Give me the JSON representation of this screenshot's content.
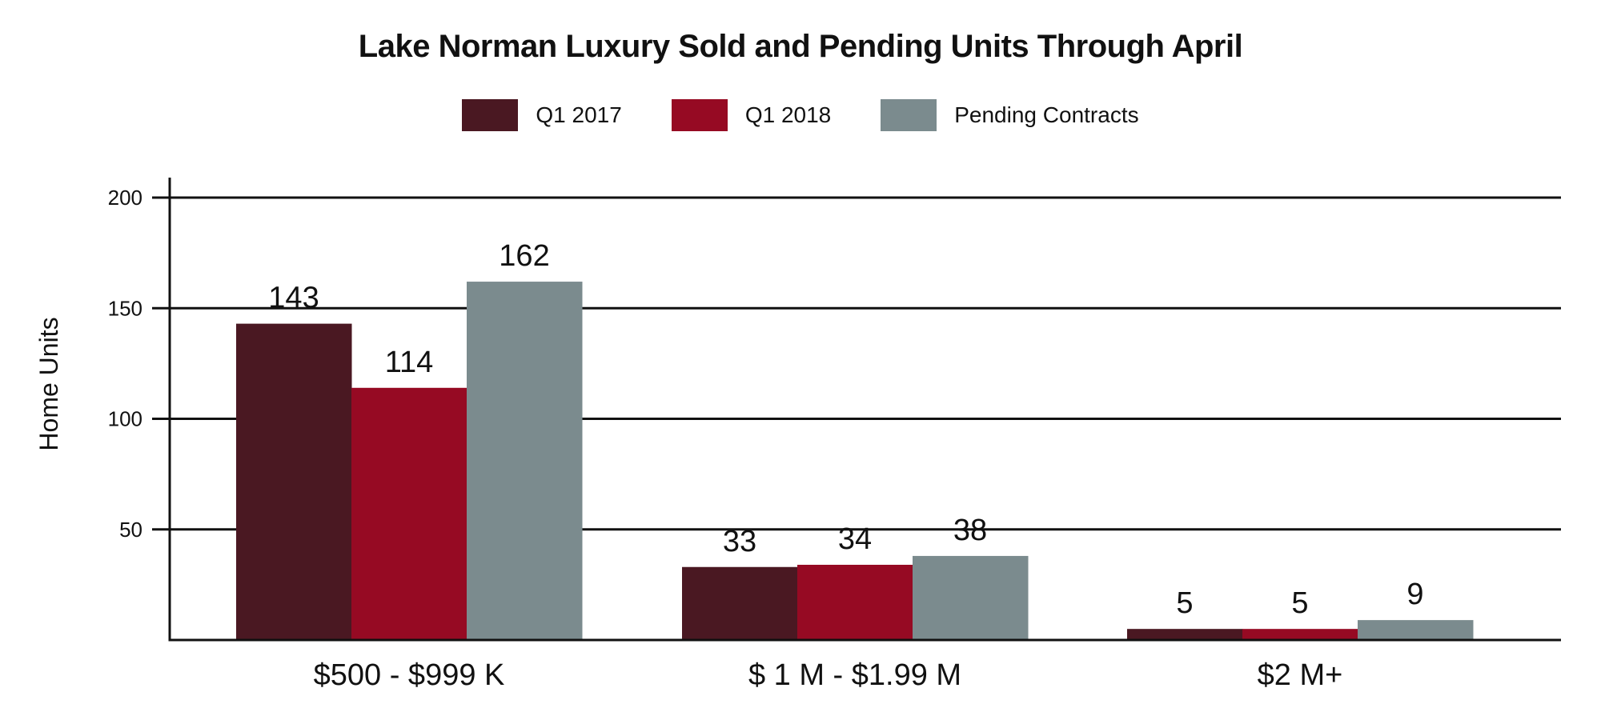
{
  "chart_data": {
    "type": "bar",
    "title": "Lake Norman Luxury Sold and Pending Units Through April",
    "xlabel": "",
    "ylabel": "Home Units",
    "categories": [
      "$500 - $999 K",
      "$ 1 M - $1.99 M",
      "$2 M+"
    ],
    "series": [
      {
        "name": "Q1 2017",
        "values": [
          143,
          33,
          5
        ],
        "color": "#4a1822"
      },
      {
        "name": "Q1 2018",
        "values": [
          114,
          34,
          5
        ],
        "color": "#960a23"
      },
      {
        "name": "Pending Contracts",
        "values": [
          162,
          38,
          9
        ],
        "color": "#7b8b8e"
      }
    ],
    "ylim": [
      0,
      200
    ],
    "yticks": [
      50,
      100,
      150,
      200
    ],
    "grid": true,
    "legend_position": "top-center",
    "data_labels": true
  }
}
